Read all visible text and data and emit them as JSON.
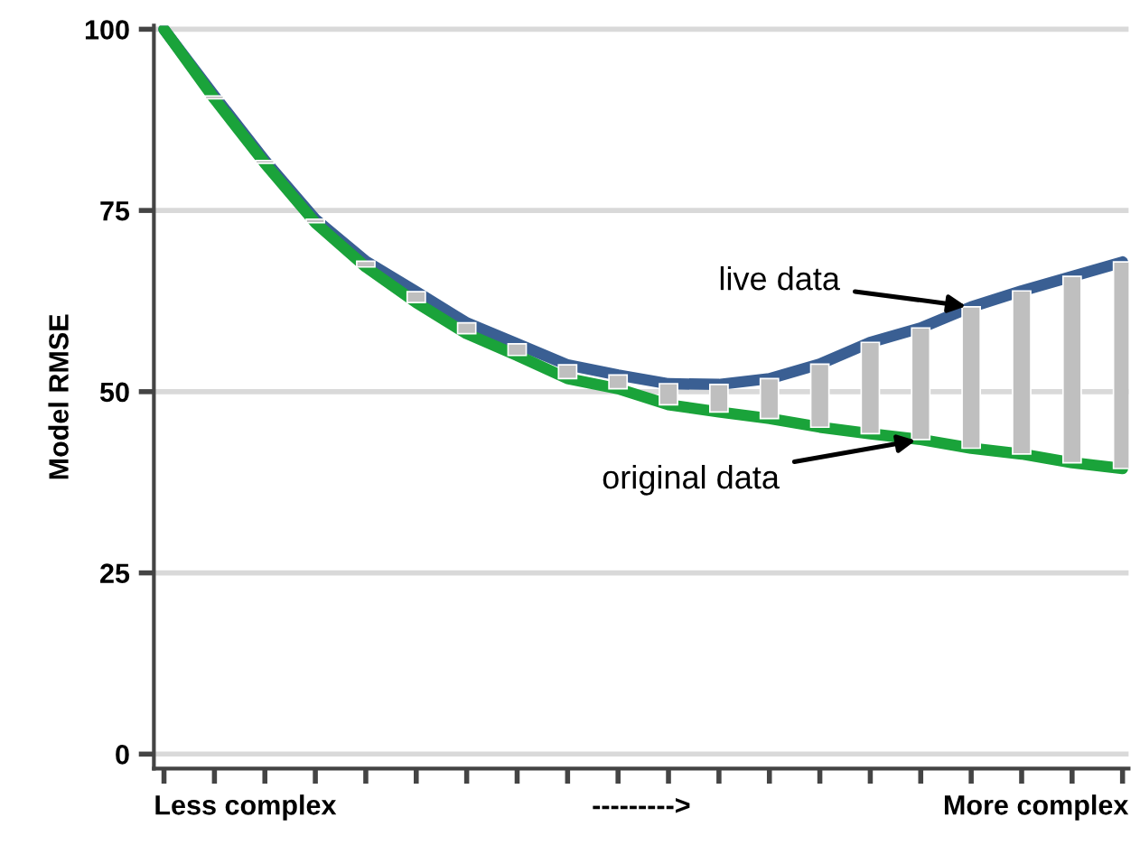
{
  "chart_data": {
    "type": "line",
    "ylabel": "Model RMSE",
    "categories": [
      null,
      null,
      null,
      null,
      null,
      null,
      null,
      null,
      null,
      null,
      null,
      null,
      null,
      null,
      null,
      null,
      null,
      null,
      null,
      null
    ],
    "series": [
      {
        "name": "live data",
        "color": "#3a5f93",
        "values": [
          100,
          90.8,
          81.9,
          73.8,
          68.0,
          63.8,
          59.5,
          56.6,
          53.7,
          52.3,
          51.1,
          51.0,
          51.8,
          53.8,
          56.8,
          58.8,
          61.7,
          63.9,
          65.9,
          67.9
        ]
      },
      {
        "name": "original data",
        "color": "#1aa33a",
        "values": [
          100,
          90.4,
          81.5,
          73.3,
          67.2,
          62.3,
          58.0,
          55.0,
          51.8,
          50.4,
          48.2,
          47.2,
          46.3,
          45.1,
          44.2,
          43.4,
          42.2,
          41.4,
          40.2,
          39.4
        ]
      },
      {
        "type": "bar",
        "color": "#bfbfbf",
        "values": [
          null,
          0.4,
          0.4,
          0.5,
          0.8,
          1.5,
          1.5,
          1.6,
          1.9,
          1.9,
          2.9,
          3.8,
          5.5,
          8.7,
          12.6,
          15.4,
          19.5,
          22.5,
          25.7,
          28.5
        ],
        "base": [
          null,
          90.4,
          81.5,
          73.3,
          67.2,
          62.3,
          58.0,
          55.0,
          51.8,
          50.4,
          48.2,
          47.2,
          46.3,
          45.1,
          44.2,
          43.4,
          42.2,
          41.4,
          40.2,
          39.4
        ]
      }
    ],
    "ylim": [
      -2,
      100.5
    ],
    "yticks": [
      0,
      25,
      50,
      75,
      100
    ],
    "grid": "y",
    "legend": false,
    "marker": "none",
    "line_style": "solid",
    "annotations": [
      "Less complex",
      "--------->",
      "More complex"
    ]
  }
}
